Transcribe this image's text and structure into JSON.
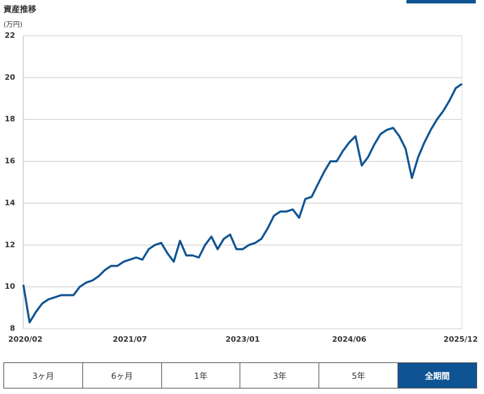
{
  "chart_data": {
    "type": "line",
    "title": "資産推移",
    "y_label": "(万円)",
    "x": [
      "2020/02",
      "2020/03",
      "2020/04",
      "2020/05",
      "2020/06",
      "2020/07",
      "2020/08",
      "2020/09",
      "2020/10",
      "2020/11",
      "2020/12",
      "2021/01",
      "2021/02",
      "2021/03",
      "2021/04",
      "2021/05",
      "2021/06",
      "2021/07",
      "2021/08",
      "2021/09",
      "2021/10",
      "2021/11",
      "2021/12",
      "2022/01",
      "2022/02",
      "2022/03",
      "2022/04",
      "2022/05",
      "2022/06",
      "2022/07",
      "2022/08",
      "2022/09",
      "2022/10",
      "2022/11",
      "2022/12",
      "2023/01",
      "2023/02",
      "2023/03",
      "2023/04",
      "2023/05",
      "2023/06",
      "2023/07",
      "2023/08",
      "2023/09",
      "2023/10",
      "2023/11",
      "2023/12",
      "2024/01",
      "2024/02",
      "2024/03",
      "2024/04",
      "2024/05",
      "2024/06",
      "2024/07",
      "2024/08",
      "2024/09",
      "2024/10",
      "2024/11",
      "2024/12",
      "2025/01",
      "2025/02",
      "2025/03",
      "2025/04",
      "2025/05",
      "2025/06",
      "2025/07",
      "2025/08",
      "2025/09",
      "2025/10",
      "2025/11",
      "2025/12"
    ],
    "series": [
      {
        "color": "#0f5492",
        "values": [
          10.1,
          8.3,
          8.8,
          9.2,
          9.4,
          9.5,
          9.6,
          9.6,
          9.6,
          10.0,
          10.2,
          10.3,
          10.5,
          10.8,
          11.0,
          11.0,
          11.2,
          11.3,
          11.4,
          11.3,
          11.8,
          12.0,
          12.1,
          11.6,
          11.2,
          12.2,
          11.5,
          11.5,
          11.4,
          12.0,
          12.4,
          11.8,
          12.3,
          12.5,
          11.8,
          11.8,
          12.0,
          12.1,
          12.3,
          12.8,
          13.4,
          13.6,
          13.6,
          13.7,
          13.3,
          14.2,
          14.3,
          14.9,
          15.5,
          16.0,
          16.0,
          16.5,
          16.9,
          17.2,
          15.8,
          16.2,
          16.8,
          17.3,
          17.5,
          17.6,
          17.2,
          16.6,
          15.2,
          16.2,
          16.9,
          17.5,
          18.0,
          18.4,
          18.9,
          19.5,
          19.7
        ]
      }
    ],
    "ylim": [
      8,
      22
    ],
    "yticks": [
      8,
      10,
      12,
      14,
      16,
      18,
      20,
      22
    ],
    "xticks": [
      "2020/02",
      "2021/07",
      "2023/01",
      "2024/06",
      "2025/12"
    ],
    "grid": true
  },
  "buttons": [
    "3ヶ月",
    "6ヶ月",
    "1年",
    "3年",
    "5年",
    "全期間"
  ]
}
